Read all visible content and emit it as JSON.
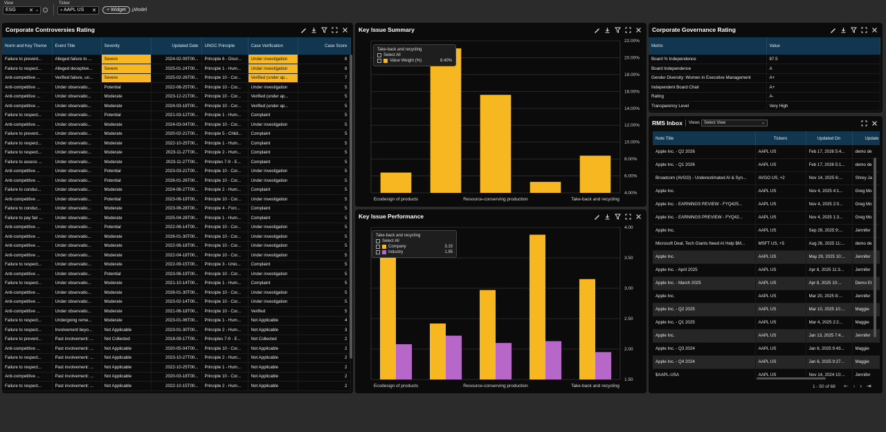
{
  "toolbar": {
    "view_label": "View",
    "view_value": "ESG",
    "ticker_label": "Ticker",
    "ticker_value": "AAPL US",
    "widget_button": "+ Widget",
    "model_button": "Model"
  },
  "colors": {
    "accent": "#f6b721",
    "industry": "#b667c8",
    "header_bg": "#11364f"
  },
  "controversies": {
    "title": "Corporate Controversies Rating",
    "columns": [
      "Norm and Key Theme",
      "Event Title",
      "Severity",
      "Updated Date",
      "UNGC Principle",
      "Case Verification",
      "Case Score"
    ],
    "rows": [
      [
        "Failure to prevent...",
        "Alleged failure to ...",
        "Severe",
        "2024-02-09T00...",
        "Principle 6 - Discr...",
        "Under investigation",
        "8"
      ],
      [
        "Failure to respect...",
        "Alleged deceptive...",
        "Severe",
        "2025-01-24T00...",
        "Principle 1 - Hum...",
        "Under investigation",
        "8"
      ],
      [
        "Anti-competitive ...",
        "Verified failure, un...",
        "Severe",
        "2025-02-26T00...",
        "Principle 10 - Cor...",
        "Verified (under ap...",
        "7"
      ],
      [
        "Anti-competitive ...",
        "Under observatio...",
        "Potential",
        "2022-08-25T00...",
        "Principle 10 - Cor...",
        "Under investigation",
        "5"
      ],
      [
        "Anti-competitive ...",
        "Under observatio...",
        "Moderate",
        "2023-12-21T00...",
        "Principle 10 - Cor...",
        "Verified (under ap...",
        "5"
      ],
      [
        "Anti-competitive ...",
        "Under observatio...",
        "Moderate",
        "2024-03-18T00...",
        "Principle 10 - Cor...",
        "Verified (under ap...",
        "5"
      ],
      [
        "Failure to respect...",
        "Under observatio...",
        "Potential",
        "2021-03-12T00...",
        "Principle 1 - Hum...",
        "Complaint",
        "5"
      ],
      [
        "Anti-competitive ...",
        "Under observatio...",
        "Moderate",
        "2024-03-04T00...",
        "Principle 10 - Cor...",
        "Under investigation",
        "5"
      ],
      [
        "Failure to prevent...",
        "Under observatio...",
        "Moderate",
        "2020-02-21T00...",
        "Principle 5 - Child...",
        "Complaint",
        "5"
      ],
      [
        "Failure to respect...",
        "Under observatio...",
        "Moderate",
        "2022-10-25T00...",
        "Principle 1 - Hum...",
        "Complaint",
        "5"
      ],
      [
        "Failure to respect...",
        "Under observatio...",
        "Moderate",
        "2023-11-27T00...",
        "Principle 2 - Hum...",
        "Complaint",
        "5"
      ],
      [
        "Failure to assess ...",
        "Under observatio...",
        "Moderate",
        "2023-11-27T00...",
        "Principles 7-9 - E...",
        "Complaint",
        "5"
      ],
      [
        "Anti-competitive ...",
        "Under observatio...",
        "Potential",
        "2023-03-21T00...",
        "Principle 10 - Cor...",
        "Under investigation",
        "5"
      ],
      [
        "Anti-competitive ...",
        "Under observatio...",
        "Potential",
        "2026-01-26T00...",
        "Principle 10 - Cor...",
        "Under investigation",
        "5"
      ],
      [
        "Failure to conduc...",
        "Under observatio...",
        "Moderate",
        "2024-06-27T00...",
        "Principle 2 - Hum...",
        "Complaint",
        "5"
      ],
      [
        "Anti-competitive ...",
        "Under observatio...",
        "Potential",
        "2023-06-19T00...",
        "Principle 10 - Cor...",
        "Under investigation",
        "5"
      ],
      [
        "Failure to conduc...",
        "Under observatio...",
        "Moderate",
        "2023-06-28T00...",
        "Principle 4 - Forc...",
        "Complaint",
        "5"
      ],
      [
        "Failure to pay fair ...",
        "Under observatio...",
        "Moderate",
        "2025-04-28T00...",
        "Principle 1 - Hum...",
        "Complaint",
        "5"
      ],
      [
        "Anti-competitive ...",
        "Under observatio...",
        "Potential",
        "2022-06-14T00...",
        "Principle 10 - Cor...",
        "Under investigation",
        "5"
      ],
      [
        "Anti-competitive ...",
        "Under observatio...",
        "Moderate",
        "2026-01-30T00...",
        "Principle 10 - Cor...",
        "Under investigation",
        "5"
      ],
      [
        "Anti-competitive ...",
        "Under observatio...",
        "Moderate",
        "2022-06-18T00...",
        "Principle 10 - Cor...",
        "Under investigation",
        "5"
      ],
      [
        "Anti-competitive ...",
        "Under observatio...",
        "Moderate",
        "2022-04-18T00...",
        "Principle 10 - Cor...",
        "Under investigation",
        "5"
      ],
      [
        "Failure to respect...",
        "Under observatio...",
        "Moderate",
        "2022-09-15T00...",
        "Principle 3 - Unio...",
        "Complaint",
        "5"
      ],
      [
        "Anti-competitive ...",
        "Under observatio...",
        "Potential",
        "2023-06-19T00...",
        "Principle 10 - Cor...",
        "Under investigation",
        "5"
      ],
      [
        "Failure to respect...",
        "Under observatio...",
        "Moderate",
        "2021-10-14T00...",
        "Principle 1 - Hum...",
        "Complaint",
        "5"
      ],
      [
        "Anti-competitive ...",
        "Under observatio...",
        "Moderate",
        "2026-01-30T00...",
        "Principle 10 - Cor...",
        "Under investigation",
        "5"
      ],
      [
        "Anti-competitive ...",
        "Under observatio...",
        "Moderate",
        "2023-02-14T00...",
        "Principle 10 - Cor...",
        "Under investigation",
        "5"
      ],
      [
        "Anti-competitive ...",
        "Under observatio...",
        "Moderate",
        "2021-06-18T00...",
        "Principle 10 - Cor...",
        "Verified",
        "5"
      ],
      [
        "Failure to respect...",
        "Undergoing reme...",
        "Moderate",
        "2023-01-06T00...",
        "Principle 1 - Hum...",
        "Not Applicable",
        "4"
      ],
      [
        "Failure to respect...",
        "Involvement beyo...",
        "Not Applicable",
        "2023-01-30T00...",
        "Principle 2 - Hum...",
        "Not Applicable",
        "3"
      ],
      [
        "Failure to prevent...",
        "Past involvement: ...",
        "Not Collected",
        "2018-09-17T00...",
        "Principles 7-9 - E...",
        "Not Collected",
        "2"
      ],
      [
        "Anti-competitive ...",
        "Past involvement: ...",
        "Not Applicable",
        "2020-05-04T00...",
        "Principle 10 - Cor...",
        "Not Applicable",
        "2"
      ],
      [
        "Failure to respect...",
        "Past involvement: ...",
        "Not Applicable",
        "2023-10-27T00...",
        "Principle 2 - Hum...",
        "Not Applicable",
        "2"
      ],
      [
        "Failure to respect...",
        "Past involvement: ...",
        "Not Applicable",
        "2022-10-25T00...",
        "Principle 1 - Hum...",
        "Not Applicable",
        "2"
      ],
      [
        "Anti-competitive ...",
        "Past involvement: ...",
        "Not Applicable",
        "2020-03-18T00...",
        "Principle 10 - Cor...",
        "Not Applicable",
        "2"
      ],
      [
        "Failure to respect...",
        "Past involvement: ...",
        "Not Applicable",
        "2022-10-15T00...",
        "Principle 2 - Hum...",
        "Not Applicable",
        "2"
      ]
    ]
  },
  "summary": {
    "title": "Key Issue Summary",
    "legend_title": "Take-back and recycling",
    "select_all": "Select All",
    "series_label": "Value Weight (%)",
    "series_value": "8.40%"
  },
  "performance": {
    "title": "Key Issue Performance",
    "legend_title": "Take-back and recycling",
    "select_all": "Select All",
    "company_label": "Company",
    "company_value": "3.15",
    "industry_label": "Industry",
    "industry_value": "1.95"
  },
  "chart_data": [
    {
      "type": "bar",
      "title": "Key Issue Summary",
      "categories": [
        "Ecodesign of products",
        "",
        "Resource-conserving production",
        "",
        "Take-back and recycling"
      ],
      "series": [
        {
          "name": "Value Weight (%)",
          "values": [
            6.4,
            21.1,
            15.6,
            5.3,
            8.4
          ]
        }
      ],
      "ylim": [
        4,
        22
      ],
      "yticks": [
        "4.00%",
        "6.00%",
        "8.00%",
        "10.00%",
        "12.00%",
        "14.00%",
        "16.00%",
        "18.00%",
        "20.00%",
        "22.00%"
      ],
      "axis_position": "right"
    },
    {
      "type": "bar",
      "title": "Key Issue Performance",
      "categories": [
        "Ecodesign of products",
        "",
        "Resource-conserving production",
        "",
        "Take-back and recycling"
      ],
      "series": [
        {
          "name": "Company",
          "values": [
            3.55,
            2.42,
            2.97,
            3.88,
            3.15
          ]
        },
        {
          "name": "Industry",
          "values": [
            2.08,
            2.22,
            2.1,
            2.13,
            1.95
          ]
        }
      ],
      "ylim": [
        1.5,
        4.0
      ],
      "yticks": [
        "1.50",
        "2.00",
        "2.50",
        "3.00",
        "3.50",
        "4.00"
      ],
      "axis_position": "right"
    }
  ],
  "governance": {
    "title": "Corporate Governance Rating",
    "columns": [
      "Metric",
      "Value"
    ],
    "rows": [
      [
        "Board % Independence",
        "87.5"
      ],
      [
        "Board Independence",
        "A"
      ],
      [
        "Gender Diversity: Women in Executive Management",
        "A+"
      ],
      [
        "Independent Board Chair",
        "A+"
      ],
      [
        "Rating",
        "A-"
      ],
      [
        "Transparency Level",
        "Very High"
      ]
    ]
  },
  "rms": {
    "title": "RMS Inbox",
    "views_label": "Views",
    "select_view": "Select View",
    "columns": [
      "Note Title",
      "Tickers",
      "Updated On",
      "Update"
    ],
    "rows": [
      [
        "Apple Inc. - Q2 2026",
        "AAPL US",
        "Feb 17, 2026 5:4...",
        "demo de"
      ],
      [
        "Apple Inc. - Q1 2026",
        "AAPL US",
        "Feb 17, 2026 5:1...",
        "demo de"
      ],
      [
        "Broadcom (AVGO) - Underestimated AI & Syn...",
        "AVGO US, +2",
        "Nov 14, 2025 6:...",
        "Shrey Ja"
      ],
      [
        "Apple Inc.",
        "AAPL US",
        "Nov 4, 2025 4:1...",
        "Greg Mo"
      ],
      [
        "Apple Inc. - EARNINGS REVIEW - FYQ425...",
        "AAPL US",
        "Nov 4, 2025 2:0...",
        "Greg Mo"
      ],
      [
        "Apple Inc. - EARNINGS PREVIEW - FYQ42...",
        "AAPL US",
        "Nov 4, 2025 1:3...",
        "Greg Mo"
      ],
      [
        "Apple Inc.",
        "AAPL US",
        "Sep 29, 2025 9:...",
        "Jennifer"
      ],
      [
        "Microsoft Deal, Tech Giants Need AI Help $M...",
        "MSFT US, +5",
        "Aug 26, 2025 11:...",
        "demo de"
      ],
      [
        "Apple Inc.",
        "AAPL US",
        "May 29, 2025 10:...",
        "Jennifer"
      ],
      [
        "Apple Inc. - April 2025",
        "AAPL US",
        "Apr 8, 2025 11:3...",
        "Jennifer"
      ],
      [
        "Apple Inc. - March 2025",
        "AAPL US",
        "Apr 8, 2025 10:...",
        "Demo Et"
      ],
      [
        "Apple Inc.",
        "AAPL US",
        "Mar 20, 2025 8:...",
        "Jennifer"
      ],
      [
        "Apple Inc. - Q2 2025",
        "AAPL US",
        "Mar 10, 2025 10:...",
        "Maggie"
      ],
      [
        "Apple Inc. - Q1 2025",
        "AAPL US",
        "Mar 4, 2025 2:2...",
        "Maggie"
      ],
      [
        "Apple Inc.",
        "AAPL US",
        "Jan 13, 2025 7:4...",
        "Jennifer"
      ],
      [
        "Apple Inc. - Q3 2024",
        "AAPL US",
        "Jan 6, 2025 9:43...",
        "Maggie"
      ],
      [
        "Apple Inc. - Q4 2024",
        "AAPL US",
        "Jan 6, 2025 9:27...",
        "Maggie"
      ],
      [
        "$AAPL-USA",
        "AAPL US",
        "Nov 14, 2024 10:...",
        "Jennifer"
      ]
    ],
    "pagination": "1 - 50 of 68"
  }
}
